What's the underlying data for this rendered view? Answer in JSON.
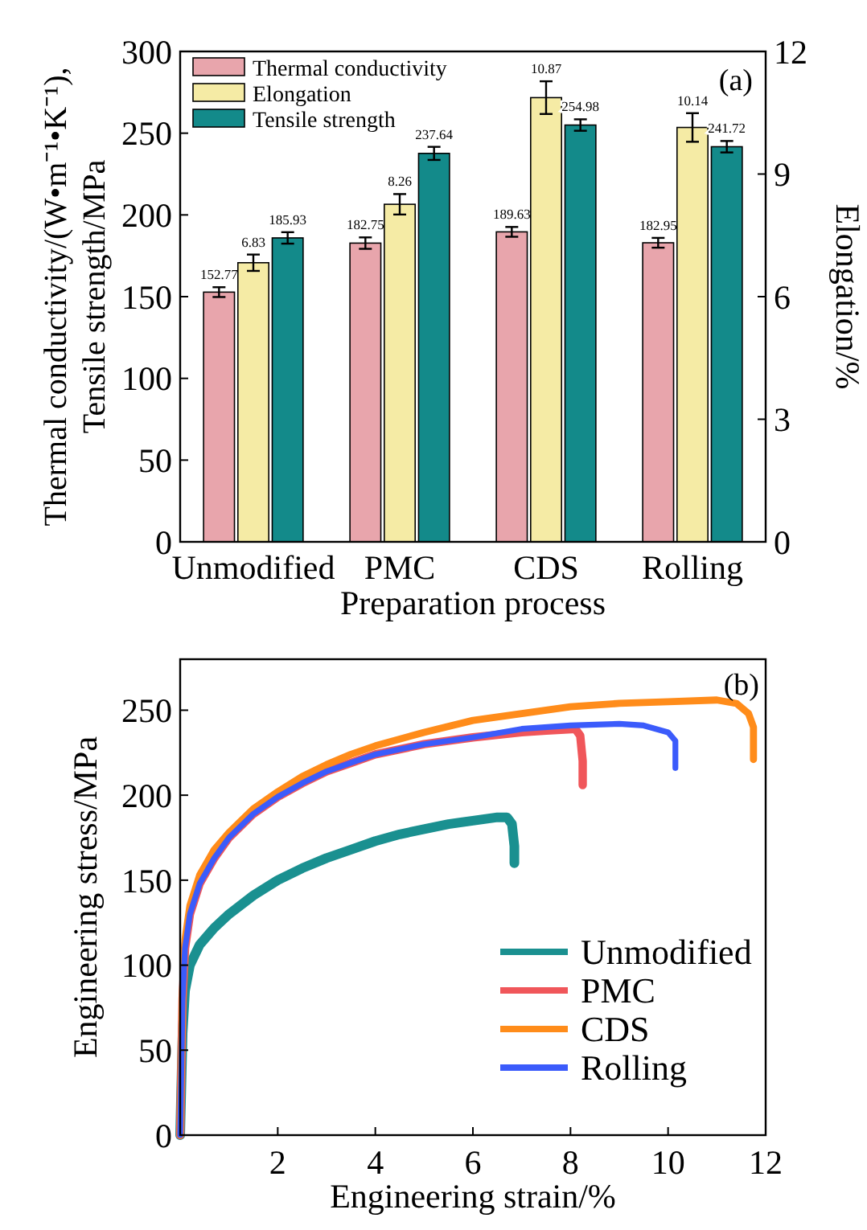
{
  "chart_data": [
    {
      "type": "bar",
      "ylabel": "Thermal conductivity/(W•m⁻¹•K⁻¹),\nTensile strength/MPa",
      "y2label": "Elongation/%",
      "xlabel": "Preparation process",
      "categories": [
        "Unmodified",
        "PMC",
        "CDS",
        "Rolling"
      ],
      "series": [
        {
          "name": "Thermal conductivity",
          "color": "#e8a5ac",
          "values": [
            152.77,
            182.75,
            189.63,
            182.95
          ],
          "errors": [
            3,
            3.5,
            3,
            3
          ]
        },
        {
          "name": "Elongation",
          "color": "#f5eba5",
          "axis": "y2",
          "values": [
            6.83,
            8.26,
            10.87,
            10.14
          ],
          "errors": [
            0.2,
            0.25,
            0.4,
            0.35
          ]
        },
        {
          "name": "Tensile strength",
          "color": "#138a8a",
          "values": [
            185.93,
            237.64,
            254.98,
            241.72
          ],
          "errors": [
            3.5,
            4,
            3.5,
            3.5
          ]
        }
      ],
      "ylim": [
        0,
        300
      ],
      "yticks": [
        0,
        50,
        100,
        150,
        200,
        250,
        300
      ],
      "y2lim": [
        0,
        12
      ],
      "y2ticks": [
        0,
        3,
        6,
        9,
        12
      ],
      "data_labels": true,
      "legend": "top left",
      "grid": false,
      "annotations": [
        "(a)"
      ]
    },
    {
      "type": "line",
      "xlabel": "Engineering strain/%",
      "ylabel": "Engineering stress/MPa",
      "xlim": [
        0,
        12
      ],
      "ylim": [
        0,
        280
      ],
      "xticks": [
        2,
        4,
        6,
        8,
        10,
        12
      ],
      "yticks": [
        0,
        50,
        100,
        150,
        200,
        250
      ],
      "series": [
        {
          "name": "Unmodified",
          "color": "#1a9090",
          "x": [
            0,
            0.05,
            0.1,
            0.2,
            0.4,
            0.7,
            1,
            1.5,
            2,
            2.5,
            3,
            3.5,
            4,
            4.5,
            5,
            5.5,
            6,
            6.5,
            6.7,
            6.8,
            6.85,
            6.85
          ],
          "values": [
            0,
            60,
            85,
            100,
            112,
            122,
            130,
            141,
            150,
            157,
            163,
            168,
            173,
            177,
            180,
            183,
            185,
            187,
            187,
            183,
            170,
            160
          ]
        },
        {
          "name": "PMC",
          "color": "#f0565a",
          "x": [
            0,
            0.05,
            0.1,
            0.2,
            0.4,
            0.7,
            1,
            1.5,
            2,
            2.5,
            3,
            3.5,
            4,
            5,
            6,
            7,
            7.5,
            8.1,
            8.2,
            8.25,
            8.25
          ],
          "values": [
            0,
            80,
            110,
            130,
            148,
            163,
            175,
            189,
            199,
            207,
            214,
            219,
            224,
            230,
            234,
            237,
            238,
            239,
            235,
            220,
            206
          ]
        },
        {
          "name": "CDS",
          "color": "#ff8c1a",
          "x": [
            0,
            0.05,
            0.1,
            0.2,
            0.4,
            0.7,
            1,
            1.5,
            2,
            2.5,
            3,
            3.5,
            4,
            5,
            6,
            7,
            8,
            9,
            10,
            11,
            11.4,
            11.65,
            11.75,
            11.75
          ],
          "values": [
            0,
            85,
            115,
            135,
            153,
            168,
            178,
            192,
            202,
            211,
            218,
            224,
            229,
            237,
            244,
            248,
            252,
            254,
            255,
            256,
            254,
            248,
            240,
            221
          ]
        },
        {
          "name": "Rolling",
          "color": "#3b5bfb",
          "x": [
            0,
            0.05,
            0.1,
            0.2,
            0.4,
            0.7,
            1,
            1.5,
            2,
            2.5,
            3,
            3.5,
            4,
            5,
            6,
            7,
            8,
            9,
            9.5,
            10,
            10.15,
            10.15
          ],
          "values": [
            0,
            80,
            110,
            130,
            148,
            163,
            175,
            189,
            199,
            207,
            214,
            219,
            224,
            230,
            234,
            239,
            241,
            242,
            241,
            237,
            232,
            216
          ]
        }
      ],
      "legend": "bottom right",
      "grid": false,
      "marker": "none",
      "line_style": "solid",
      "annotations": [
        "(b)"
      ]
    }
  ]
}
